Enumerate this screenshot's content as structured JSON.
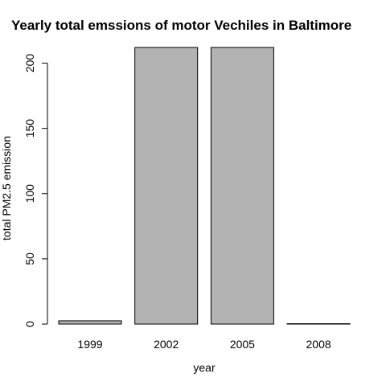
{
  "chart_data": {
    "type": "bar",
    "title": "Yearly total emssions of motor Vechiles in Baltimore",
    "xlabel": "year",
    "ylabel": "total PM2.5 emission",
    "categories": [
      "1999",
      "2002",
      "2005",
      "2008"
    ],
    "values": [
      2.5,
      212,
      212,
      0.3
    ],
    "ylim": [
      0,
      212
    ],
    "yticks": [
      0,
      50,
      100,
      150,
      200
    ],
    "grid": false,
    "bar_color": "#b3b3b3",
    "border_color": "#000000"
  }
}
